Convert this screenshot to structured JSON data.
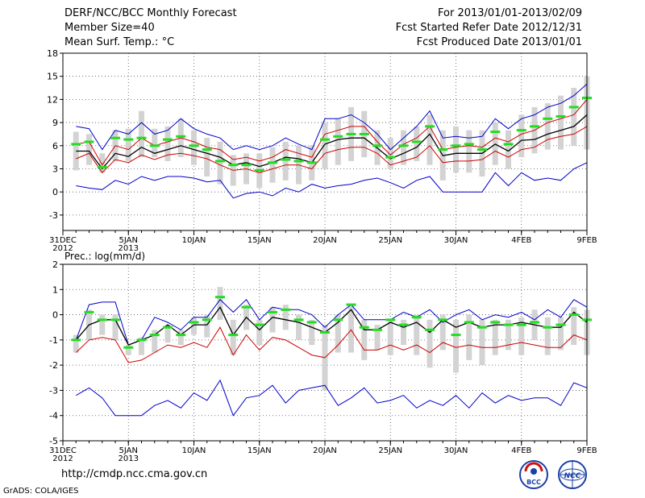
{
  "header": {
    "title": "DERF/NCC/BCC Monthly Forecast",
    "member_size": "Member Size=40",
    "variable": "Mean Surf. Temp.: °C",
    "period": "For 2013/01/01-2013/02/09",
    "started": "Fcst Started Refer Date 2012/12/31",
    "produced": "Fcst Produced Date 2013/01/01"
  },
  "footer": {
    "url": "http://cmdp.ncc.cma.gov.cn",
    "credit": "GrADS: COLA/IGES",
    "logo1_text": "BCC",
    "logo2_text": "NCC"
  },
  "colors": {
    "ensemble_max": "#0000cc",
    "ensemble_min": "#0000cc",
    "upper_band": "#cc0000",
    "lower_band": "#cc0000",
    "mean": "#000000",
    "box": "#d3d3d3",
    "median": "#22dd22"
  },
  "chart_data": [
    {
      "type": "line",
      "title": "Mean Surf. Temp.: °C",
      "xlabel": "",
      "ylabel": "",
      "x_tick_labels": [
        {
          "day": 0,
          "label": "31DEC",
          "sub": "2012"
        },
        {
          "day": 5,
          "label": "5JAN",
          "sub": "2013"
        },
        {
          "day": 10,
          "label": "10JAN"
        },
        {
          "day": 15,
          "label": "15JAN"
        },
        {
          "day": 20,
          "label": "20JAN"
        },
        {
          "day": 25,
          "label": "25JAN"
        },
        {
          "day": 30,
          "label": "30JAN"
        },
        {
          "day": 35,
          "label": "4FEB"
        },
        {
          "day": 40,
          "label": "9FEB"
        }
      ],
      "xlim": [
        0,
        40
      ],
      "ylim": [
        -5,
        18
      ],
      "yticks": [
        -3,
        0,
        3,
        6,
        9,
        12,
        15,
        18
      ],
      "days": [
        1,
        2,
        3,
        4,
        5,
        6,
        7,
        8,
        9,
        10,
        11,
        12,
        13,
        14,
        15,
        16,
        17,
        18,
        19,
        20,
        21,
        22,
        23,
        24,
        25,
        26,
        27,
        28,
        29,
        30,
        31,
        32,
        33,
        34,
        35,
        36,
        37,
        38,
        39,
        40
      ],
      "series": [
        {
          "name": "max",
          "values": [
            8.5,
            8.2,
            5.5,
            8.0,
            7.5,
            9.0,
            7.5,
            8.0,
            9.5,
            8.2,
            7.5,
            7.0,
            5.5,
            6.0,
            5.5,
            6.0,
            7.0,
            6.2,
            5.5,
            9.5,
            9.5,
            10.0,
            9.0,
            7.5,
            5.5,
            7.0,
            8.5,
            10.5,
            7.0,
            7.2,
            7.0,
            7.2,
            9.5,
            8.2,
            9.5,
            10.0,
            11.0,
            11.5,
            12.5,
            14.0
          ]
        },
        {
          "name": "upper",
          "values": [
            6.2,
            6.5,
            3.5,
            6.0,
            5.5,
            7.0,
            6.0,
            6.5,
            7.0,
            6.5,
            5.8,
            5.5,
            4.2,
            4.5,
            4.0,
            4.5,
            5.5,
            5.0,
            4.5,
            7.5,
            8.0,
            8.5,
            8.5,
            6.5,
            4.8,
            6.2,
            7.0,
            8.5,
            5.5,
            5.8,
            6.0,
            5.8,
            7.0,
            6.5,
            7.5,
            8.0,
            9.0,
            9.5,
            10.0,
            12.0
          ]
        },
        {
          "name": "mean",
          "values": [
            5.3,
            5.3,
            3.0,
            5.0,
            4.6,
            5.8,
            5.0,
            5.5,
            6.0,
            5.5,
            5.0,
            4.5,
            3.5,
            3.8,
            3.3,
            3.8,
            4.5,
            4.3,
            3.8,
            6.2,
            6.8,
            7.0,
            7.0,
            5.7,
            4.3,
            5.0,
            5.8,
            7.5,
            4.7,
            5.0,
            5.0,
            5.0,
            6.2,
            5.3,
            6.7,
            6.8,
            7.5,
            8.0,
            8.5,
            10.0
          ]
        },
        {
          "name": "lower",
          "values": [
            4.3,
            5.0,
            2.5,
            4.2,
            3.8,
            4.8,
            4.2,
            4.8,
            5.0,
            4.7,
            4.3,
            3.5,
            2.8,
            3.0,
            2.5,
            3.0,
            3.5,
            3.5,
            3.0,
            5.0,
            5.5,
            5.8,
            5.8,
            5.0,
            3.5,
            4.0,
            4.5,
            6.0,
            3.8,
            4.0,
            4.0,
            4.2,
            5.3,
            4.5,
            5.5,
            5.8,
            6.8,
            7.2,
            7.5,
            8.5
          ]
        },
        {
          "name": "min",
          "values": [
            0.8,
            0.5,
            0.3,
            1.5,
            1.0,
            2.0,
            1.5,
            2.0,
            2.0,
            1.8,
            1.3,
            1.5,
            -0.8,
            -0.2,
            0.0,
            -0.5,
            0.5,
            0.0,
            1.0,
            0.5,
            0.8,
            1.0,
            1.5,
            1.8,
            1.2,
            0.5,
            1.5,
            2.0,
            0.0,
            0.0,
            0.0,
            0.0,
            2.5,
            0.8,
            2.5,
            1.5,
            1.8,
            1.5,
            3.0,
            3.8
          ]
        }
      ],
      "boxes": [
        {
          "lo": 2.8,
          "hi": 7.8,
          "med": 6.2
        },
        {
          "lo": 3.5,
          "hi": 7.5,
          "med": 6.5
        },
        {
          "lo": 2.5,
          "hi": 5.0,
          "med": 3.2
        },
        {
          "lo": 4.0,
          "hi": 8.0,
          "med": 7.0
        },
        {
          "lo": 4.0,
          "hi": 8.2,
          "med": 6.8
        },
        {
          "lo": 4.5,
          "hi": 10.5,
          "med": 7.0
        },
        {
          "lo": 4.5,
          "hi": 8.2,
          "med": 6.0
        },
        {
          "lo": 4.0,
          "hi": 8.5,
          "med": 6.8
        },
        {
          "lo": 4.5,
          "hi": 9.5,
          "med": 7.2
        },
        {
          "lo": 3.5,
          "hi": 8.0,
          "med": 6.0
        },
        {
          "lo": 2.0,
          "hi": 7.0,
          "med": 5.5
        },
        {
          "lo": 1.0,
          "hi": 6.5,
          "med": 4.0
        },
        {
          "lo": 0.8,
          "hi": 4.8,
          "med": 3.5
        },
        {
          "lo": 1.0,
          "hi": 5.0,
          "med": 3.5
        },
        {
          "lo": 0.5,
          "hi": 5.0,
          "med": 2.8
        },
        {
          "lo": 1.2,
          "hi": 5.8,
          "med": 3.8
        },
        {
          "lo": 1.5,
          "hi": 6.5,
          "med": 4.2
        },
        {
          "lo": 1.0,
          "hi": 6.0,
          "med": 4.0
        },
        {
          "lo": 1.5,
          "hi": 6.0,
          "med": 3.8
        },
        {
          "lo": 3.0,
          "hi": 9.0,
          "med": 6.8
        },
        {
          "lo": 3.5,
          "hi": 9.5,
          "med": 7.2
        },
        {
          "lo": 4.0,
          "hi": 11.0,
          "med": 7.5
        },
        {
          "lo": 4.5,
          "hi": 10.5,
          "med": 7.5
        },
        {
          "lo": 3.5,
          "hi": 8.0,
          "med": 6.0
        },
        {
          "lo": 3.0,
          "hi": 7.0,
          "med": 4.5
        },
        {
          "lo": 3.5,
          "hi": 8.0,
          "med": 6.0
        },
        {
          "lo": 4.0,
          "hi": 8.5,
          "med": 6.5
        },
        {
          "lo": 3.5,
          "hi": 10.0,
          "med": 8.5
        },
        {
          "lo": 1.5,
          "hi": 8.0,
          "med": 5.5
        },
        {
          "lo": 2.5,
          "hi": 8.5,
          "med": 6.0
        },
        {
          "lo": 2.5,
          "hi": 8.0,
          "med": 6.2
        },
        {
          "lo": 2.0,
          "hi": 8.0,
          "med": 5.5
        },
        {
          "lo": 3.5,
          "hi": 9.0,
          "med": 7.8
        },
        {
          "lo": 3.0,
          "hi": 8.0,
          "med": 6.2
        },
        {
          "lo": 4.5,
          "hi": 10.0,
          "med": 8.0
        },
        {
          "lo": 5.0,
          "hi": 11.0,
          "med": 8.5
        },
        {
          "lo": 5.5,
          "hi": 11.5,
          "med": 9.5
        },
        {
          "lo": 5.5,
          "hi": 12.5,
          "med": 9.8
        },
        {
          "lo": 6.0,
          "hi": 13.5,
          "med": 11.0
        },
        {
          "lo": 5.5,
          "hi": 15.0,
          "med": 12.2
        }
      ]
    },
    {
      "type": "line",
      "title": "Prec.: log(mm/d)",
      "xlabel": "",
      "ylabel": "",
      "x_tick_labels": [
        {
          "day": 0,
          "label": "31DEC",
          "sub": "2012"
        },
        {
          "day": 5,
          "label": "5JAN",
          "sub": "2013"
        },
        {
          "day": 10,
          "label": "10JAN"
        },
        {
          "day": 15,
          "label": "15JAN"
        },
        {
          "day": 20,
          "label": "20JAN"
        },
        {
          "day": 25,
          "label": "25JAN"
        },
        {
          "day": 30,
          "label": "30JAN"
        },
        {
          "day": 35,
          "label": "4FEB"
        },
        {
          "day": 40,
          "label": "9FEB"
        }
      ],
      "xlim": [
        0,
        40
      ],
      "ylim": [
        -5,
        2
      ],
      "yticks": [
        -5,
        -4,
        -3,
        -2,
        -1,
        0,
        1,
        2
      ],
      "days": [
        1,
        2,
        3,
        4,
        5,
        6,
        7,
        8,
        9,
        10,
        11,
        12,
        13,
        14,
        15,
        16,
        17,
        18,
        19,
        20,
        21,
        22,
        23,
        24,
        25,
        26,
        27,
        28,
        29,
        30,
        31,
        32,
        33,
        34,
        35,
        36,
        37,
        38,
        39,
        40
      ],
      "series": [
        {
          "name": "max",
          "values": [
            -1.0,
            0.4,
            0.5,
            0.5,
            -1.2,
            -1.0,
            -0.1,
            -0.3,
            -0.6,
            -0.1,
            -0.1,
            0.6,
            0.1,
            0.6,
            -0.2,
            0.3,
            0.2,
            0.2,
            0.0,
            -0.5,
            0.0,
            0.4,
            -0.2,
            -0.2,
            -0.2,
            0.1,
            -0.1,
            0.2,
            -0.3,
            0.0,
            0.2,
            -0.2,
            0.0,
            -0.1,
            0.1,
            -0.2,
            0.2,
            -0.1,
            0.6,
            0.3
          ]
        },
        {
          "name": "mean",
          "values": [
            -1.0,
            -0.4,
            -0.2,
            -0.2,
            -1.2,
            -1.0,
            -0.8,
            -0.4,
            -0.8,
            -0.4,
            -0.4,
            0.3,
            -0.8,
            -0.1,
            -0.6,
            -0.1,
            -0.2,
            -0.3,
            -0.5,
            -0.7,
            -0.3,
            0.2,
            -0.6,
            -0.6,
            -0.3,
            -0.5,
            -0.3,
            -0.7,
            -0.2,
            -0.5,
            -0.3,
            -0.5,
            -0.4,
            -0.4,
            -0.3,
            -0.4,
            -0.5,
            -0.5,
            0.1,
            -0.3
          ]
        },
        {
          "name": "lower",
          "values": [
            -1.5,
            -1.0,
            -0.9,
            -1.0,
            -1.9,
            -1.8,
            -1.5,
            -1.2,
            -1.3,
            -1.1,
            -1.3,
            -0.5,
            -1.6,
            -0.8,
            -1.4,
            -0.9,
            -1.0,
            -1.3,
            -1.6,
            -1.7,
            -1.2,
            -0.6,
            -1.4,
            -1.4,
            -1.2,
            -1.4,
            -1.2,
            -1.5,
            -1.1,
            -1.3,
            -1.2,
            -1.3,
            -1.3,
            -1.2,
            -1.1,
            -1.2,
            -1.3,
            -1.3,
            -0.8,
            -1.0
          ]
        },
        {
          "name": "min",
          "values": [
            -3.2,
            -2.9,
            -3.3,
            -4.0,
            -4.0,
            -4.0,
            -3.6,
            -3.4,
            -3.7,
            -3.1,
            -3.4,
            -2.6,
            -4.0,
            -3.3,
            -3.2,
            -2.8,
            -3.5,
            -3.0,
            -2.9,
            -2.8,
            -3.6,
            -3.3,
            -2.9,
            -3.5,
            -3.4,
            -3.2,
            -3.7,
            -3.4,
            -3.6,
            -3.2,
            -3.7,
            -3.1,
            -3.5,
            -3.2,
            -3.4,
            -3.3,
            -3.3,
            -3.6,
            -2.7,
            -2.9
          ]
        }
      ],
      "boxes": [
        {
          "lo": -1.5,
          "hi": -0.8,
          "med": -1.0
        },
        {
          "lo": -1.0,
          "hi": 0.2,
          "med": 0.1
        },
        {
          "lo": -0.8,
          "hi": 0.0,
          "med": -0.2
        },
        {
          "lo": -1.0,
          "hi": 0.0,
          "med": -0.2
        },
        {
          "lo": -1.6,
          "hi": -1.2,
          "med": -1.3
        },
        {
          "lo": -1.6,
          "hi": -0.9,
          "med": -1.0
        },
        {
          "lo": -1.5,
          "hi": -0.6,
          "med": -0.8
        },
        {
          "lo": -1.1,
          "hi": -0.4,
          "med": -0.5
        },
        {
          "lo": -1.2,
          "hi": -0.6,
          "med": -0.8
        },
        {
          "lo": -0.8,
          "hi": -0.1,
          "med": -0.3
        },
        {
          "lo": -0.9,
          "hi": 0.0,
          "med": -0.2
        },
        {
          "lo": -0.2,
          "hi": 1.1,
          "med": 0.7
        },
        {
          "lo": -1.6,
          "hi": -0.2,
          "med": -0.8
        },
        {
          "lo": -0.6,
          "hi": 0.4,
          "med": 0.3
        },
        {
          "lo": -1.2,
          "hi": -0.2,
          "med": -0.4
        },
        {
          "lo": -0.7,
          "hi": 0.3,
          "med": 0.1
        },
        {
          "lo": -0.6,
          "hi": 0.4,
          "med": 0.2
        },
        {
          "lo": -1.0,
          "hi": 0.0,
          "med": -0.2
        },
        {
          "lo": -1.2,
          "hi": -0.2,
          "med": -0.3
        },
        {
          "lo": -3.0,
          "hi": -0.4,
          "med": -0.7
        },
        {
          "lo": -1.5,
          "hi": 0.0,
          "med": -0.2
        },
        {
          "lo": -1.5,
          "hi": 0.4,
          "med": 0.4
        },
        {
          "lo": -1.8,
          "hi": -0.2,
          "med": -0.5
        },
        {
          "lo": -1.4,
          "hi": -0.4,
          "med": -0.6
        },
        {
          "lo": -1.6,
          "hi": -0.2,
          "med": -0.2
        },
        {
          "lo": -1.2,
          "hi": -0.2,
          "med": -0.4
        },
        {
          "lo": -1.6,
          "hi": 0.0,
          "med": -0.1
        },
        {
          "lo": -2.1,
          "hi": -0.2,
          "med": -0.6
        },
        {
          "lo": -1.4,
          "hi": 0.0,
          "med": -0.2
        },
        {
          "lo": -2.3,
          "hi": -0.2,
          "med": -0.8
        },
        {
          "lo": -1.8,
          "hi": 0.0,
          "med": -0.3
        },
        {
          "lo": -2.0,
          "hi": -0.2,
          "med": -0.5
        },
        {
          "lo": -1.6,
          "hi": -0.2,
          "med": -0.3
        },
        {
          "lo": -1.4,
          "hi": -0.2,
          "med": -0.4
        },
        {
          "lo": -1.6,
          "hi": -0.1,
          "med": -0.4
        },
        {
          "lo": -1.0,
          "hi": 0.2,
          "med": -0.3
        },
        {
          "lo": -1.6,
          "hi": -0.1,
          "med": -0.5
        },
        {
          "lo": -1.4,
          "hi": -0.1,
          "med": -0.4
        },
        {
          "lo": -1.2,
          "hi": 0.3,
          "med": 0.0
        },
        {
          "lo": -1.6,
          "hi": 0.2,
          "med": -0.2
        }
      ]
    }
  ]
}
